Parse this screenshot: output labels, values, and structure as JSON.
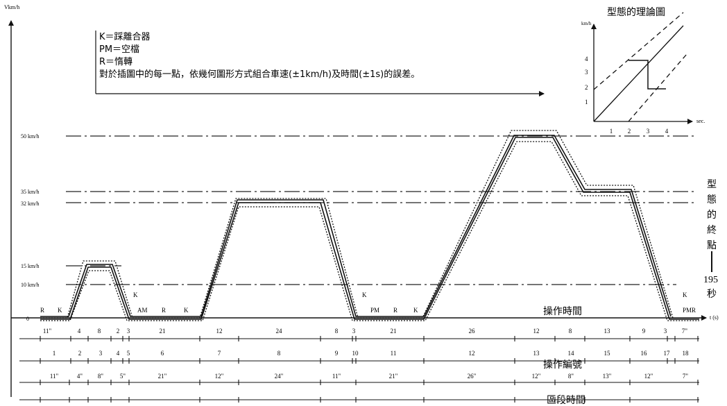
{
  "axes": {
    "y_label": "Vkm/h",
    "x_unit": "t (s)",
    "origin": "0"
  },
  "legend": {
    "lines": [
      "K＝踩離合器",
      "PM＝空檔",
      "R＝惰轉",
      "對於插圖中的每一點，依幾何圖形方式組合車速(±1km/h)及時間(±1s)的誤差。"
    ]
  },
  "speed_levels": [
    "50 km/h",
    "35 km/h",
    "32 km/h",
    "15 km/h",
    "10 km/h"
  ],
  "profile_labels": {
    "r1": "R",
    "k1": "K",
    "k2": "K",
    "am": "AM",
    "r2": "R",
    "k3": "K",
    "k4": "K",
    "pm": "PM",
    "r3": "R",
    "k5": "K",
    "k6": "K",
    "pmr": "PMR"
  },
  "row_titles": {
    "op_time": "操作時間",
    "op_number": "操作編號",
    "segment_time": "區段時間"
  },
  "operation_times": [
    "11\"",
    "4",
    "8",
    "2",
    "3",
    "21",
    "12",
    "24",
    "8",
    "3",
    "21",
    "26",
    "12",
    "8",
    "13",
    "9",
    "3",
    "7\""
  ],
  "operation_numbers": [
    "1",
    "2",
    "3",
    "4",
    "5",
    "6",
    "7",
    "8",
    "9",
    "10",
    "11",
    "12",
    "13",
    "14",
    "15",
    "16",
    "17",
    "18"
  ],
  "segment_times": [
    "11\"",
    "4\"",
    "8\"",
    "5\"",
    "21\"",
    "12\"",
    "24\"",
    "11\"",
    "21\"",
    "26\"",
    "12\"",
    "8\"",
    "13\"",
    "12\"",
    "7\""
  ],
  "end_note": {
    "chars": [
      "型",
      "態",
      "的",
      "終",
      "點"
    ],
    "value": "195",
    "unit": "秒"
  },
  "inset": {
    "title": "型態的理論圖",
    "y_label": "km/h",
    "x_label": "sec.",
    "y_ticks": [
      "4",
      "3",
      "2",
      "1"
    ],
    "x_ticks": [
      "1",
      "2",
      "3",
      "4"
    ]
  }
}
